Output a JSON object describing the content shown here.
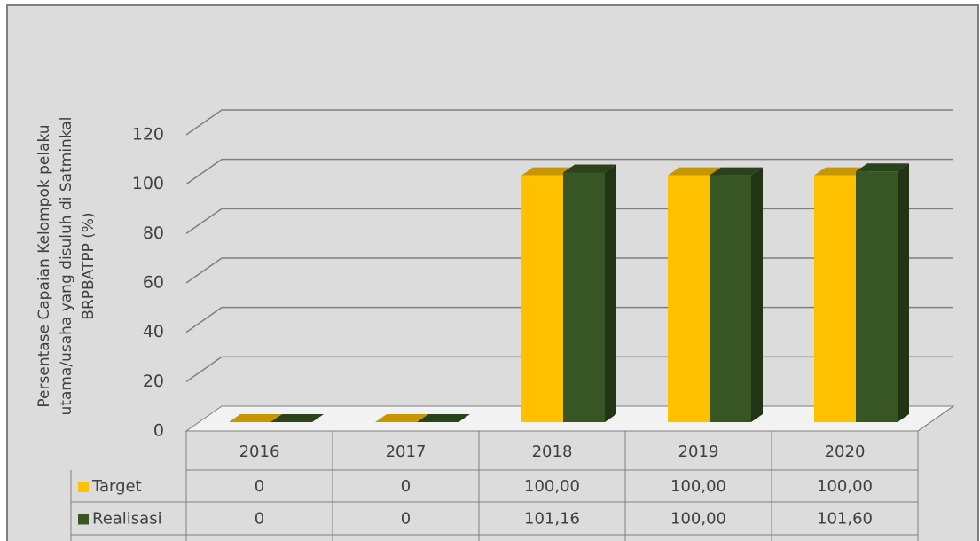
{
  "chart_data": {
    "type": "bar3d",
    "ylabel": [
      "Persentase Capaian Kelompok pelaku",
      "utama/usaha yang disuluh di Satminkal",
      "BRPBATPP (%)"
    ],
    "categories": [
      "2016",
      "2017",
      "2018",
      "2019",
      "2020"
    ],
    "series": [
      {
        "name": "Target",
        "color": "#ffc000",
        "values": [
          0,
          0,
          100,
          100,
          100
        ],
        "value_labels": [
          "0",
          "0",
          "100,00",
          "100,00",
          "100,00"
        ]
      },
      {
        "name": "Realisasi",
        "color": "#375623",
        "values": [
          0,
          0,
          101.16,
          100,
          101.6
        ],
        "value_labels": [
          "0",
          "0",
          "101,16",
          "100,00",
          "101,60"
        ]
      }
    ],
    "ylim": [
      0,
      120
    ],
    "yticks": [
      0,
      20,
      40,
      60,
      80,
      100,
      120
    ],
    "grid": true
  }
}
